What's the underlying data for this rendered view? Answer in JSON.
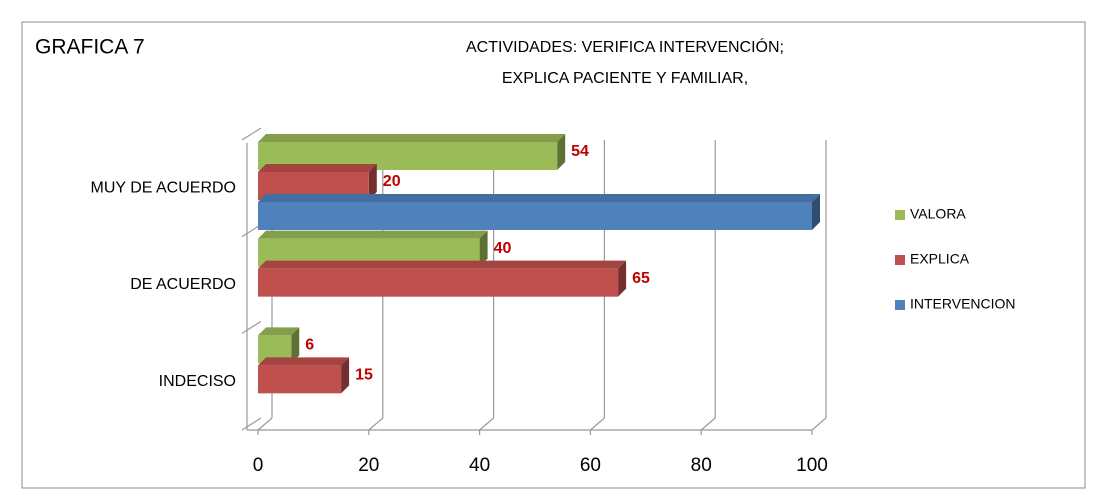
{
  "chart_data": {
    "type": "bar3d_horizontal",
    "annotation": "GRAFICA 7",
    "title": "ACTIVIDADES: VERIFICA INTERVENCIÓN;",
    "subtitle": "EXPLICA PACIENTE Y FAMILIAR,",
    "categories": [
      "INDECISO",
      "DE ACUERDO",
      "MUY DE ACUERDO"
    ],
    "series": [
      {
        "name": "VALORA",
        "color": "#9bbb59",
        "values": [
          6,
          40,
          54
        ],
        "data_labels": true
      },
      {
        "name": "EXPLICA",
        "color": "#c0504d",
        "values": [
          15,
          65,
          20
        ],
        "data_labels": true
      },
      {
        "name": "INTERVENCION",
        "color": "#4f81bd",
        "values": [
          null,
          null,
          100
        ],
        "data_labels": false
      }
    ],
    "xlim": [
      0,
      100
    ],
    "xticks": [
      0,
      20,
      40,
      60,
      80,
      100
    ],
    "grid": true,
    "legend": "right",
    "label_color": "#c00000"
  }
}
